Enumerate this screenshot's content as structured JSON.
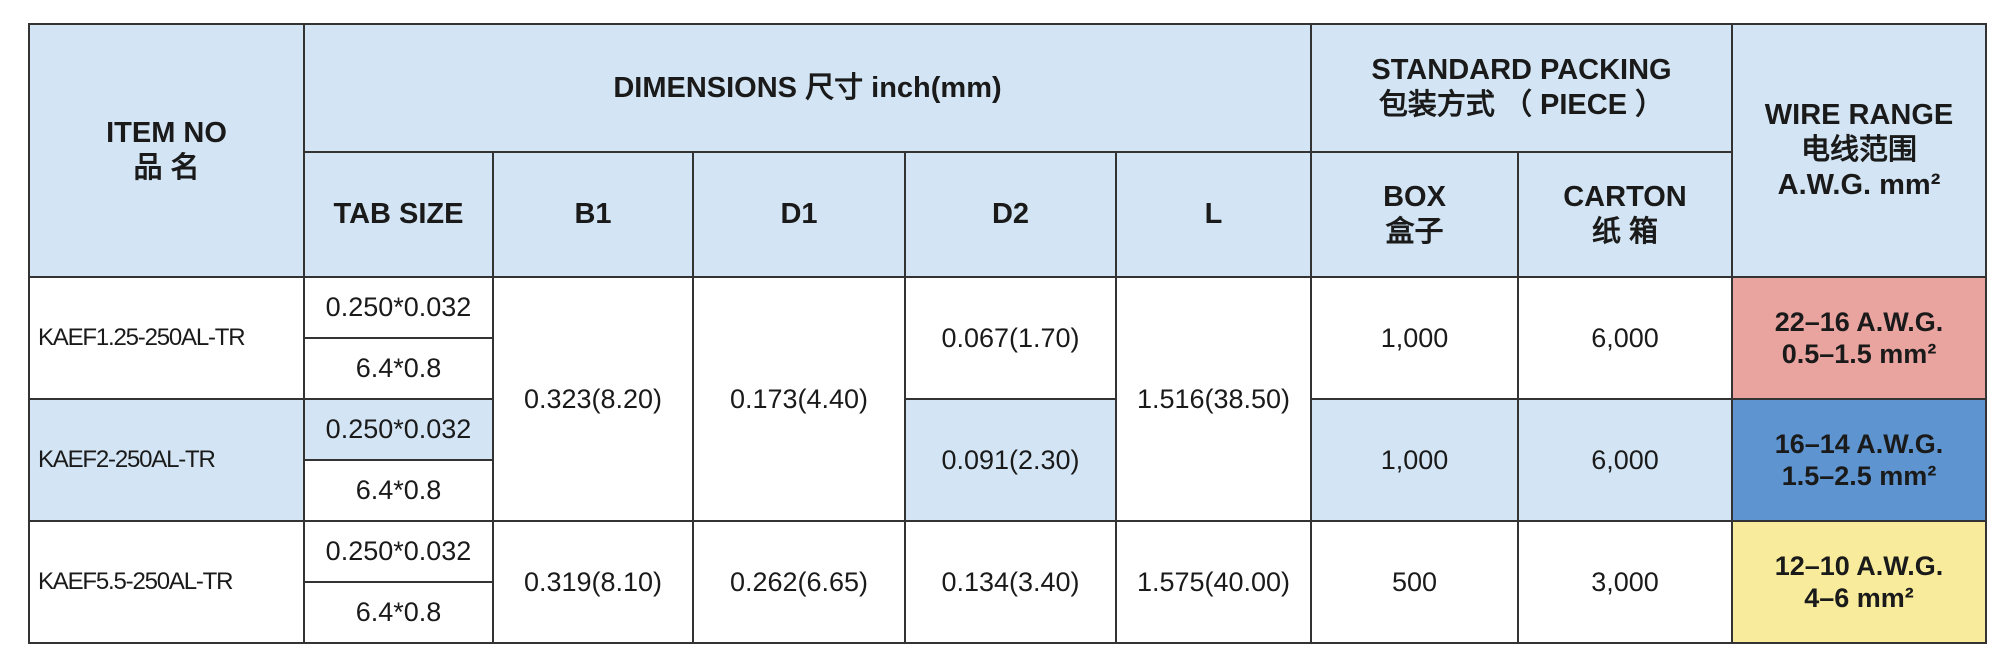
{
  "table": {
    "header": {
      "item_no": [
        "ITEM NO",
        "品 名"
      ],
      "dimensions": "DIMENSIONS 尺寸  inch(mm)",
      "standard_packing": [
        "STANDARD PACKING",
        "包装方式 （ PIECE ）"
      ],
      "wire_range": [
        "WIRE RANGE",
        "电线范围",
        "A.W.G. mm²"
      ],
      "tab_size": "TAB SIZE",
      "b1": "B1",
      "d1": "D1",
      "d2": "D2",
      "l": "L",
      "box": [
        "BOX",
        "盒子"
      ],
      "carton": [
        "CARTON",
        "纸 箱"
      ]
    },
    "rows": [
      {
        "item_no": "KAEF1.25-250AL-TR",
        "tab_size": [
          "0.250*0.032",
          "6.4*0.8"
        ],
        "b1": "0.323(8.20)",
        "d1": "0.173(4.40)",
        "d2": "0.067(1.70)",
        "l": "1.516(38.50)",
        "box": "1,000",
        "carton": "6,000",
        "wire_range": [
          "22–16 A.W.G.",
          "0.5–1.5  mm²"
        ]
      },
      {
        "item_no": "KAEF2-250AL-TR",
        "tab_size": [
          "0.250*0.032",
          "6.4*0.8"
        ],
        "d2": "0.091(2.30)",
        "box": "1,000",
        "carton": "6,000",
        "wire_range": [
          "16–14 A.W.G.",
          "1.5–2.5  mm²"
        ]
      },
      {
        "item_no": "KAEF5.5-250AL-TR",
        "tab_size": [
          "0.250*0.032",
          "6.4*0.8"
        ],
        "b1": "0.319(8.10)",
        "d1": "0.262(6.65)",
        "d2": "0.134(3.40)",
        "l": "1.575(40.00)",
        "box": "500",
        "carton": "3,000",
        "wire_range": [
          "12–10 A.W.G.",
          "4–6  mm²"
        ]
      }
    ]
  }
}
